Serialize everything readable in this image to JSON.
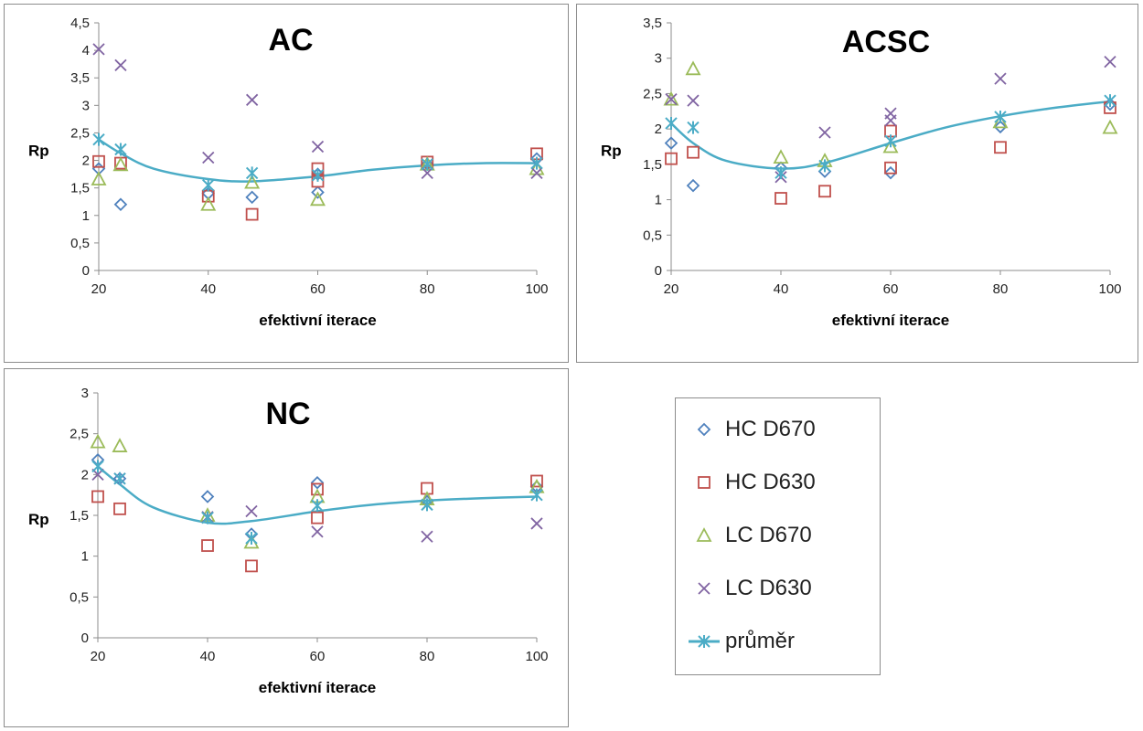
{
  "chart_data": [
    {
      "type": "scatter",
      "title": "AC",
      "xlabel": "efektivní iterace",
      "ylabel": "Rp",
      "xlim": [
        20,
        100
      ],
      "ylim": [
        0,
        4.5
      ],
      "yticks": [
        "0",
        "0,5",
        "1",
        "1,5",
        "2",
        "2,5",
        "3",
        "3,5",
        "4",
        "4,5"
      ],
      "xticks": [
        "20",
        "40",
        "60",
        "80",
        "100"
      ],
      "series": [
        {
          "name": "HC D670",
          "x": [
            20,
            24,
            40,
            48,
            60,
            60,
            80,
            100
          ],
          "y": [
            1.85,
            1.2,
            1.4,
            1.33,
            1.42,
            1.75,
            1.93,
            2.03
          ]
        },
        {
          "name": "HC D630",
          "x": [
            20,
            24,
            40,
            48,
            60,
            60,
            80,
            100
          ],
          "y": [
            1.98,
            1.95,
            1.35,
            1.02,
            1.85,
            1.62,
            1.97,
            2.12
          ]
        },
        {
          "name": "LC D670",
          "x": [
            20,
            24,
            40,
            48,
            60,
            80,
            100
          ],
          "y": [
            1.66,
            1.92,
            1.2,
            1.6,
            1.29,
            1.93,
            1.85
          ]
        },
        {
          "name": "LC D630",
          "x": [
            20,
            24,
            40,
            48,
            60,
            80,
            100
          ],
          "y": [
            4.02,
            3.73,
            2.05,
            3.1,
            2.25,
            1.77,
            1.77
          ]
        },
        {
          "name": "průměr",
          "x": [
            20,
            24,
            40,
            48,
            60,
            80,
            100
          ],
          "y": [
            2.38,
            2.2,
            1.55,
            1.77,
            1.73,
            1.93,
            1.95
          ]
        }
      ]
    },
    {
      "type": "scatter",
      "title": "ACSC",
      "xlabel": "efektivní iterace",
      "ylabel": "Rp",
      "xlim": [
        20,
        100
      ],
      "ylim": [
        0,
        3.5
      ],
      "yticks": [
        "0",
        "0,5",
        "1",
        "1,5",
        "2",
        "2,5",
        "3",
        "3,5"
      ],
      "xticks": [
        "20",
        "40",
        "60",
        "80",
        "100"
      ],
      "series": [
        {
          "name": "HC D670",
          "x": [
            20,
            24,
            40,
            48,
            60,
            80,
            100
          ],
          "y": [
            1.8,
            1.2,
            1.45,
            1.4,
            1.38,
            2.03,
            2.35
          ]
        },
        {
          "name": "HC D630",
          "x": [
            20,
            24,
            40,
            48,
            60,
            60,
            80,
            100
          ],
          "y": [
            1.58,
            1.67,
            1.02,
            1.12,
            1.45,
            1.97,
            1.74,
            2.3
          ]
        },
        {
          "name": "LC D670",
          "x": [
            20,
            24,
            40,
            48,
            60,
            80,
            100
          ],
          "y": [
            2.42,
            2.85,
            1.6,
            1.55,
            1.75,
            2.1,
            2.02
          ]
        },
        {
          "name": "LC D630",
          "x": [
            20,
            24,
            40,
            48,
            60,
            60,
            80,
            100
          ],
          "y": [
            2.42,
            2.4,
            1.32,
            1.95,
            2.22,
            2.12,
            2.71,
            2.95
          ]
        },
        {
          "name": "průměr",
          "x": [
            20,
            24,
            40,
            48,
            60,
            80,
            100
          ],
          "y": [
            2.08,
            2.02,
            1.38,
            1.48,
            1.83,
            2.17,
            2.4
          ]
        }
      ]
    },
    {
      "type": "scatter",
      "title": "NC",
      "xlabel": "efektivní iterace",
      "ylabel": "Rp",
      "xlim": [
        20,
        100
      ],
      "ylim": [
        0,
        3
      ],
      "yticks": [
        "0",
        "0,5",
        "1",
        "1,5",
        "2",
        "2,5",
        "3"
      ],
      "xticks": [
        "20",
        "40",
        "60",
        "80",
        "100"
      ],
      "series": [
        {
          "name": "HC D670",
          "x": [
            20,
            24,
            40,
            48,
            60,
            80,
            100
          ],
          "y": [
            2.18,
            1.95,
            1.73,
            1.27,
            1.9,
            1.67,
            1.85
          ]
        },
        {
          "name": "HC D630",
          "x": [
            20,
            24,
            40,
            48,
            60,
            60,
            80,
            100
          ],
          "y": [
            1.73,
            1.58,
            1.13,
            0.88,
            1.82,
            1.47,
            1.83,
            1.92
          ]
        },
        {
          "name": "LC D670",
          "x": [
            20,
            24,
            40,
            48,
            60,
            80,
            100
          ],
          "y": [
            2.4,
            2.35,
            1.5,
            1.17,
            1.73,
            1.7,
            1.85
          ]
        },
        {
          "name": "LC D630",
          "x": [
            20,
            24,
            40,
            48,
            60,
            80,
            100
          ],
          "y": [
            2.0,
            1.95,
            1.48,
            1.55,
            1.3,
            1.24,
            1.4
          ]
        },
        {
          "name": "průměr",
          "x": [
            20,
            24,
            40,
            48,
            60,
            80,
            100
          ],
          "y": [
            2.1,
            1.95,
            1.47,
            1.22,
            1.62,
            1.63,
            1.75
          ]
        }
      ]
    }
  ],
  "trend": {
    "AC": {
      "x": [
        20,
        24,
        30,
        40,
        48,
        60,
        70,
        80,
        90,
        100
      ],
      "y": [
        2.38,
        2.13,
        1.85,
        1.66,
        1.62,
        1.71,
        1.83,
        1.91,
        1.95,
        1.95
      ]
    },
    "ACSC": {
      "x": [
        20,
        24,
        30,
        40,
        48,
        60,
        70,
        80,
        90,
        100
      ],
      "y": [
        2.08,
        1.8,
        1.55,
        1.44,
        1.52,
        1.8,
        2.02,
        2.18,
        2.3,
        2.39
      ]
    },
    "NC": {
      "x": [
        20,
        24,
        30,
        40,
        48,
        60,
        70,
        80,
        90,
        100
      ],
      "y": [
        2.1,
        1.88,
        1.6,
        1.41,
        1.43,
        1.55,
        1.63,
        1.68,
        1.71,
        1.73
      ]
    }
  },
  "legend": {
    "items": [
      {
        "label": "HC D670",
        "marker": "diamond-icon",
        "color": "#4f81bd"
      },
      {
        "label": "HC D630",
        "marker": "square-icon",
        "color": "#c0504d"
      },
      {
        "label": "LC D670",
        "marker": "triangle-icon",
        "color": "#9bbb59"
      },
      {
        "label": "LC D630",
        "marker": "x-icon",
        "color": "#8064a2"
      },
      {
        "label": "průměr",
        "marker": "line-star-icon",
        "color": "#4bacc6"
      }
    ]
  }
}
